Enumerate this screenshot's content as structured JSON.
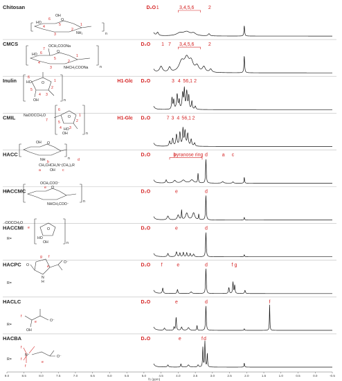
{
  "chart_data": {
    "type": "line",
    "title": "",
    "xlabel": "f1 (ppm)",
    "xlim": [
      9.0,
      -0.5
    ],
    "x_ticks": [
      "9.0",
      "8.5",
      "8.0",
      "7.5",
      "7.0",
      "6.5",
      "6.0",
      "5.5",
      "5.0",
      "4.5",
      "4.0",
      "3.5",
      "3.0",
      "2.5",
      "2.0",
      "1.5",
      "1.0",
      "0.5",
      "0.0",
      "-0.5"
    ],
    "grid": false,
    "legend": "none",
    "series": [
      {
        "name": "Chitosan",
        "labels": [
          {
            "text": "D₂O",
            "x": 4.79,
            "bold": true
          },
          {
            "text": "1",
            "x": 4.6
          },
          {
            "text": "3,4,5,6",
            "x": 3.75
          },
          {
            "text": "2",
            "x": 3.08
          }
        ],
        "bracket": [
          4.0,
          3.35
        ],
        "peaks": [
          {
            "x": 4.79,
            "h": 0.92,
            "w": 0.03
          },
          {
            "x": 4.6,
            "h": 0.12,
            "w": 0.03
          },
          {
            "x": 3.95,
            "h": 0.1,
            "w": 0.12
          },
          {
            "x": 3.75,
            "h": 0.14,
            "w": 0.12
          },
          {
            "x": 3.55,
            "h": 0.09,
            "w": 0.08
          },
          {
            "x": 3.1,
            "h": 0.08,
            "w": 0.03
          },
          {
            "x": 2.07,
            "h": 0.38,
            "w": 0.012
          }
        ]
      },
      {
        "name": "CMCS",
        "labels": [
          {
            "text": "D₂O",
            "x": 4.95,
            "bold": true
          },
          {
            "text": "1",
            "x": 4.45
          },
          {
            "text": "7",
            "x": 4.25
          },
          {
            "text": "3,4,5,6",
            "x": 3.75
          },
          {
            "text": "2",
            "x": 3.08
          }
        ],
        "bracket": [
          4.0,
          3.35
        ],
        "peaks": [
          {
            "x": 4.79,
            "h": 0.92,
            "w": 0.03
          },
          {
            "x": 4.5,
            "h": 0.22,
            "w": 0.05
          },
          {
            "x": 4.25,
            "h": 0.18,
            "w": 0.04
          },
          {
            "x": 3.9,
            "h": 0.38,
            "w": 0.09
          },
          {
            "x": 3.75,
            "h": 0.46,
            "w": 0.08
          },
          {
            "x": 3.62,
            "h": 0.35,
            "w": 0.07
          },
          {
            "x": 3.45,
            "h": 0.22,
            "w": 0.06
          },
          {
            "x": 3.25,
            "h": 0.2,
            "w": 0.05
          },
          {
            "x": 3.05,
            "h": 0.12,
            "w": 0.04
          },
          {
            "x": 2.07,
            "h": 0.62,
            "w": 0.012
          }
        ]
      },
      {
        "name": "Inulin",
        "labels": [
          {
            "text": "D₂O",
            "x": 4.95,
            "bold": true
          },
          {
            "text": "H1-Glc",
            "x": 5.55,
            "bold": true
          },
          {
            "text": "3",
            "x": 4.15
          },
          {
            "text": "4",
            "x": 3.97
          },
          {
            "text": "5",
            "x": 3.82
          },
          {
            "text": "6,1",
            "x": 3.68
          },
          {
            "text": "2",
            "x": 3.5
          }
        ],
        "peaks": [
          {
            "x": 5.35,
            "h": 0.05,
            "w": 0.01
          },
          {
            "x": 4.79,
            "h": 0.92,
            "w": 0.03
          },
          {
            "x": 4.18,
            "h": 0.42,
            "w": 0.015
          },
          {
            "x": 4.13,
            "h": 0.34,
            "w": 0.015
          },
          {
            "x": 4.03,
            "h": 0.55,
            "w": 0.02
          },
          {
            "x": 3.97,
            "h": 0.32,
            "w": 0.015
          },
          {
            "x": 3.87,
            "h": 0.58,
            "w": 0.02
          },
          {
            "x": 3.82,
            "h": 0.7,
            "w": 0.015
          },
          {
            "x": 3.75,
            "h": 0.65,
            "w": 0.02
          },
          {
            "x": 3.69,
            "h": 0.48,
            "w": 0.015
          },
          {
            "x": 3.6,
            "h": 0.3,
            "w": 0.015
          },
          {
            "x": 3.5,
            "h": 0.12,
            "w": 0.02
          }
        ]
      },
      {
        "name": "CMIL",
        "labels": [
          {
            "text": "D₂O",
            "x": 4.95,
            "bold": true
          },
          {
            "text": "H1-Glc",
            "x": 5.55,
            "bold": true
          },
          {
            "text": "7",
            "x": 4.3
          },
          {
            "text": "3",
            "x": 4.16
          },
          {
            "text": "4",
            "x": 4.0
          },
          {
            "text": "5",
            "x": 3.86
          },
          {
            "text": "6,1",
            "x": 3.72
          },
          {
            "text": "2",
            "x": 3.55
          }
        ],
        "peaks": [
          {
            "x": 5.35,
            "h": 0.05,
            "w": 0.01
          },
          {
            "x": 4.79,
            "h": 0.92,
            "w": 0.03
          },
          {
            "x": 4.25,
            "h": 0.18,
            "w": 0.02
          },
          {
            "x": 4.16,
            "h": 0.28,
            "w": 0.02
          },
          {
            "x": 4.05,
            "h": 0.42,
            "w": 0.02
          },
          {
            "x": 3.95,
            "h": 0.5,
            "w": 0.02
          },
          {
            "x": 3.86,
            "h": 0.62,
            "w": 0.015
          },
          {
            "x": 3.8,
            "h": 0.55,
            "w": 0.02
          },
          {
            "x": 3.72,
            "h": 0.45,
            "w": 0.02
          },
          {
            "x": 3.62,
            "h": 0.25,
            "w": 0.02
          },
          {
            "x": 3.52,
            "h": 0.12,
            "w": 0.02
          }
        ]
      },
      {
        "name": "HACC",
        "labels": [
          {
            "text": "D₂O",
            "x": 4.95,
            "bold": true
          },
          {
            "text": "d",
            "x": 3.18
          },
          {
            "text": "pyranose ring",
            "x": 3.7
          },
          {
            "text": "b",
            "x": 4.1
          },
          {
            "text": "a",
            "x": 2.68
          },
          {
            "text": "c",
            "x": 2.4
          }
        ],
        "bracket": [
          4.25,
          3.3
        ],
        "peaks": [
          {
            "x": 4.79,
            "h": 0.92,
            "w": 0.03
          },
          {
            "x": 4.35,
            "h": 0.12,
            "w": 0.02
          },
          {
            "x": 4.1,
            "h": 0.1,
            "w": 0.04
          },
          {
            "x": 3.85,
            "h": 0.11,
            "w": 0.06
          },
          {
            "x": 3.6,
            "h": 0.12,
            "w": 0.06
          },
          {
            "x": 3.42,
            "h": 0.35,
            "w": 0.012
          },
          {
            "x": 3.19,
            "h": 0.88,
            "w": 0.012
          },
          {
            "x": 2.7,
            "h": 0.06,
            "w": 0.03
          },
          {
            "x": 2.4,
            "h": 0.05,
            "w": 0.02
          },
          {
            "x": 2.07,
            "h": 0.22,
            "w": 0.01
          }
        ]
      },
      {
        "name": "HACCMC",
        "labels": [
          {
            "text": "D₂O",
            "x": 4.95,
            "bold": true
          },
          {
            "text": "d",
            "x": 3.18
          },
          {
            "text": "e",
            "x": 4.05
          }
        ],
        "peaks": [
          {
            "x": 4.79,
            "h": 0.92,
            "w": 0.03
          },
          {
            "x": 4.3,
            "h": 0.14,
            "w": 0.03
          },
          {
            "x": 4.0,
            "h": 0.18,
            "w": 0.03
          },
          {
            "x": 3.9,
            "h": 0.35,
            "w": 0.01
          },
          {
            "x": 3.75,
            "h": 0.25,
            "w": 0.04
          },
          {
            "x": 3.55,
            "h": 0.26,
            "w": 0.04
          },
          {
            "x": 3.4,
            "h": 0.2,
            "w": 0.01
          },
          {
            "x": 3.19,
            "h": 0.9,
            "w": 0.012
          },
          {
            "x": 2.07,
            "h": 0.1,
            "w": 0.01
          }
        ]
      },
      {
        "name": "HACCMI",
        "labels": [
          {
            "text": "D₂O",
            "x": 4.95,
            "bold": true
          },
          {
            "text": "d",
            "x": 3.18
          },
          {
            "text": "e",
            "x": 4.05
          }
        ],
        "peaks": [
          {
            "x": 4.79,
            "h": 0.92,
            "w": 0.03
          },
          {
            "x": 4.3,
            "h": 0.12,
            "w": 0.02
          },
          {
            "x": 4.05,
            "h": 0.18,
            "w": 0.02
          },
          {
            "x": 3.95,
            "h": 0.14,
            "w": 0.015
          },
          {
            "x": 3.85,
            "h": 0.16,
            "w": 0.015
          },
          {
            "x": 3.75,
            "h": 0.15,
            "w": 0.015
          },
          {
            "x": 3.65,
            "h": 0.12,
            "w": 0.015
          },
          {
            "x": 3.55,
            "h": 0.1,
            "w": 0.02
          },
          {
            "x": 3.19,
            "h": 0.9,
            "w": 0.012
          },
          {
            "x": 2.07,
            "h": 0.08,
            "w": 0.01
          }
        ]
      },
      {
        "name": "HACPC",
        "labels": [
          {
            "text": "D₂O",
            "x": 4.95,
            "bold": true
          },
          {
            "text": "f",
            "x": 4.48
          },
          {
            "text": "d",
            "x": 3.18
          },
          {
            "text": "e",
            "x": 4.0
          },
          {
            "text": "f",
            "x": 2.42
          },
          {
            "text": "g",
            "x": 2.32
          }
        ],
        "peaks": [
          {
            "x": 4.79,
            "h": 0.92,
            "w": 0.03
          },
          {
            "x": 4.45,
            "h": 0.2,
            "w": 0.015
          },
          {
            "x": 4.02,
            "h": 0.15,
            "w": 0.015
          },
          {
            "x": 3.62,
            "h": 0.06,
            "w": 0.03
          },
          {
            "x": 3.19,
            "h": 0.92,
            "w": 0.012
          },
          {
            "x": 2.52,
            "h": 0.22,
            "w": 0.015
          },
          {
            "x": 2.4,
            "h": 0.42,
            "w": 0.012
          },
          {
            "x": 2.35,
            "h": 0.3,
            "w": 0.012
          },
          {
            "x": 2.05,
            "h": 0.12,
            "w": 0.015
          }
        ]
      },
      {
        "name": "HACLC",
        "labels": [
          {
            "text": "D₂O",
            "x": 4.95,
            "bold": true
          },
          {
            "text": "d",
            "x": 3.18
          },
          {
            "text": "e",
            "x": 4.05
          },
          {
            "text": "f",
            "x": 1.33
          }
        ],
        "peaks": [
          {
            "x": 4.79,
            "h": 0.92,
            "w": 0.03
          },
          {
            "x": 4.4,
            "h": 0.08,
            "w": 0.02
          },
          {
            "x": 4.12,
            "h": 0.12,
            "w": 0.012
          },
          {
            "x": 4.06,
            "h": 0.48,
            "w": 0.012
          },
          {
            "x": 3.9,
            "h": 0.12,
            "w": 0.02
          },
          {
            "x": 3.7,
            "h": 0.1,
            "w": 0.03
          },
          {
            "x": 3.45,
            "h": 0.18,
            "w": 0.01
          },
          {
            "x": 3.19,
            "h": 0.9,
            "w": 0.012
          },
          {
            "x": 2.07,
            "h": 0.06,
            "w": 0.01
          },
          {
            "x": 1.33,
            "h": 0.95,
            "w": 0.008
          }
        ]
      },
      {
        "name": "HACBA",
        "labels": [
          {
            "text": "D₂O",
            "x": 4.95,
            "bold": true
          },
          {
            "text": "d",
            "x": 3.22
          },
          {
            "text": "f",
            "x": 3.3
          },
          {
            "text": "e",
            "x": 3.95
          }
        ],
        "peaks": [
          {
            "x": 4.79,
            "h": 0.92,
            "w": 0.03
          },
          {
            "x": 4.3,
            "h": 0.08,
            "w": 0.02
          },
          {
            "x": 3.92,
            "h": 0.12,
            "w": 0.012
          },
          {
            "x": 3.7,
            "h": 0.08,
            "w": 0.03
          },
          {
            "x": 3.42,
            "h": 0.08,
            "w": 0.02
          },
          {
            "x": 3.28,
            "h": 0.72,
            "w": 0.01
          },
          {
            "x": 3.22,
            "h": 0.95,
            "w": 0.01
          },
          {
            "x": 3.15,
            "h": 0.5,
            "w": 0.01
          },
          {
            "x": 2.07,
            "h": 0.15,
            "w": 0.01
          }
        ]
      }
    ]
  },
  "structures": {
    "chitosan": {
      "oh": "OH",
      "o": "O",
      "ho": "HO",
      "nh2": "NH₂",
      "n": "n",
      "nums": [
        "6",
        "5",
        "4",
        "3",
        "2",
        "1"
      ]
    },
    "cmcs": {
      "sub": "OCH₂COONa",
      "o": "O",
      "ho": "HO",
      "nh": "NHCH₂COONa",
      "n": "n",
      "nums": [
        "7",
        "6",
        "5",
        "4",
        "3",
        "2",
        "1"
      ]
    },
    "inulin": {
      "ho": "HO",
      "o": "O",
      "oh": "OH",
      "n": "n",
      "nums": [
        "6",
        "5",
        "4",
        "3",
        "2",
        "1"
      ]
    },
    "cmil": {
      "sub": "NaOOCCH₂O",
      "o": "O",
      "ho": "HO",
      "oh": "OH",
      "n": "n",
      "nums": [
        "7",
        "6",
        "5",
        "4",
        "3",
        "2",
        "1"
      ]
    },
    "hacc": {
      "oh": "OH",
      "o": "O",
      "nh": "NH",
      "chain": "CH₂CHCH₂N⁺(CH₃)₂R",
      "oh2": "OH",
      "n": "n",
      "letters": [
        "a",
        "b",
        "c",
        "d"
      ]
    },
    "haccmc": {
      "r": "R=",
      "sub": "OCH₂COO⁻",
      "o": "O",
      "nh": "NHCH₂COO⁻",
      "n": "n",
      "e": "e"
    },
    "haccmi": {
      "r": "R=",
      "sub": "-OOCCH₂O",
      "o": "O",
      "ho": "HO",
      "oh": "OH",
      "n": "n",
      "e": "e"
    },
    "hacpc": {
      "r": "R=",
      "o": "O",
      "nh": "N",
      "h": "H",
      "coo": "O⁻",
      "letters": [
        "g",
        "f",
        "e"
      ]
    },
    "haclc": {
      "r": "R=",
      "oh": "OH",
      "coo": "O⁻",
      "letters": [
        "f",
        "e"
      ]
    },
    "hacba": {
      "r": "R=",
      "n": "N⁺",
      "coo": "O⁻",
      "letters": [
        "f",
        "f",
        "f",
        "e"
      ]
    }
  }
}
